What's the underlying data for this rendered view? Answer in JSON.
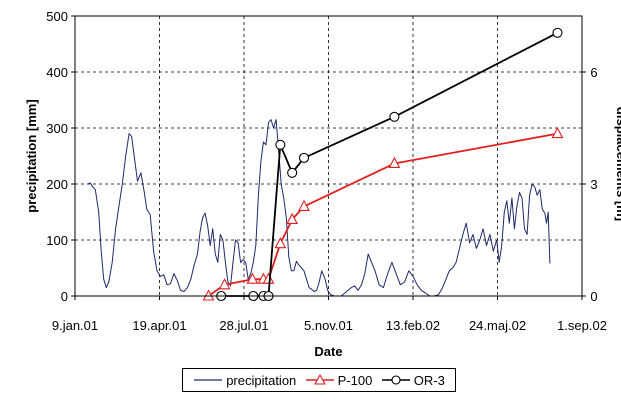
{
  "chart_data": {
    "type": "line",
    "xlabel": "Date",
    "ylabel": "precipitation [mm]",
    "y2label": "displacements [m]",
    "x_axis": "date",
    "xlim": [
      "2001-01-09",
      "2002-09-01"
    ],
    "ylim": [
      0,
      500
    ],
    "y2lim": [
      0,
      7.5
    ],
    "x_ticks": [
      "9.jan.01",
      "19.apr.01",
      "28.jul.01",
      "5.nov.01",
      "13.feb.02",
      "24.maj.02",
      "1.sep.02"
    ],
    "y_ticks": [
      "0",
      "100",
      "200",
      "300",
      "400",
      "500"
    ],
    "y2_ticks": [
      "0",
      "3",
      "6"
    ],
    "grid": "dashed",
    "legend_position": "bottom",
    "colors": {
      "precipitation": "#1f2a6b",
      "P-100": "#e02020",
      "OR-3": "#000000"
    },
    "series": [
      {
        "name": "precipitation",
        "axis": "left",
        "marker": "none",
        "points": [
          [
            "2001-01-24",
            200
          ],
          [
            "2001-01-27",
            202
          ],
          [
            "2001-01-30",
            195
          ],
          [
            "2001-02-02",
            190
          ],
          [
            "2001-02-06",
            150
          ],
          [
            "2001-02-09",
            80
          ],
          [
            "2001-02-12",
            30
          ],
          [
            "2001-02-15",
            15
          ],
          [
            "2001-02-18",
            25
          ],
          [
            "2001-02-22",
            60
          ],
          [
            "2001-02-26",
            120
          ],
          [
            "2001-03-02",
            160
          ],
          [
            "2001-03-06",
            200
          ],
          [
            "2001-03-10",
            250
          ],
          [
            "2001-03-14",
            290
          ],
          [
            "2001-03-17",
            285
          ],
          [
            "2001-03-20",
            250
          ],
          [
            "2001-03-24",
            205
          ],
          [
            "2001-03-28",
            220
          ],
          [
            "2001-04-01",
            185
          ],
          [
            "2001-04-04",
            155
          ],
          [
            "2001-04-08",
            145
          ],
          [
            "2001-04-12",
            80
          ],
          [
            "2001-04-16",
            45
          ],
          [
            "2001-04-20",
            35
          ],
          [
            "2001-04-24",
            38
          ],
          [
            "2001-04-28",
            20
          ],
          [
            "2001-05-02",
            22
          ],
          [
            "2001-05-06",
            40
          ],
          [
            "2001-05-10",
            28
          ],
          [
            "2001-05-14",
            10
          ],
          [
            "2001-05-18",
            8
          ],
          [
            "2001-05-22",
            15
          ],
          [
            "2001-05-26",
            30
          ],
          [
            "2001-05-30",
            55
          ],
          [
            "2001-06-03",
            75
          ],
          [
            "2001-06-06",
            115
          ],
          [
            "2001-06-09",
            140
          ],
          [
            "2001-06-12",
            148
          ],
          [
            "2001-06-15",
            125
          ],
          [
            "2001-06-18",
            90
          ],
          [
            "2001-06-21",
            120
          ],
          [
            "2001-06-24",
            75
          ],
          [
            "2001-06-27",
            60
          ],
          [
            "2001-06-30",
            110
          ],
          [
            "2001-07-03",
            100
          ],
          [
            "2001-07-06",
            60
          ],
          [
            "2001-07-09",
            25
          ],
          [
            "2001-07-12",
            18
          ],
          [
            "2001-07-15",
            60
          ],
          [
            "2001-07-18",
            100
          ],
          [
            "2001-07-21",
            95
          ],
          [
            "2001-07-24",
            60
          ],
          [
            "2001-07-27",
            65
          ],
          [
            "2001-07-30",
            60
          ],
          [
            "2001-08-02",
            30
          ],
          [
            "2001-08-05",
            40
          ],
          [
            "2001-08-08",
            60
          ],
          [
            "2001-08-11",
            90
          ],
          [
            "2001-08-14",
            180
          ],
          [
            "2001-08-17",
            240
          ],
          [
            "2001-08-20",
            275
          ],
          [
            "2001-08-23",
            270
          ],
          [
            "2001-08-26",
            310
          ],
          [
            "2001-08-29",
            315
          ],
          [
            "2001-09-01",
            300
          ],
          [
            "2001-09-04",
            315
          ],
          [
            "2001-09-07",
            260
          ],
          [
            "2001-09-10",
            200
          ],
          [
            "2001-09-13",
            175
          ],
          [
            "2001-09-16",
            140
          ],
          [
            "2001-09-19",
            70
          ],
          [
            "2001-09-22",
            45
          ],
          [
            "2001-09-25",
            45
          ],
          [
            "2001-09-28",
            62
          ],
          [
            "2001-10-01",
            55
          ],
          [
            "2001-10-04",
            50
          ],
          [
            "2001-10-07",
            45
          ],
          [
            "2001-10-10",
            30
          ],
          [
            "2001-10-13",
            15
          ],
          [
            "2001-10-16",
            12
          ],
          [
            "2001-10-19",
            8
          ],
          [
            "2001-10-22",
            10
          ],
          [
            "2001-10-25",
            25
          ],
          [
            "2001-10-28",
            45
          ],
          [
            "2001-11-01",
            30
          ],
          [
            "2001-11-04",
            10
          ],
          [
            "2001-11-08",
            2
          ],
          [
            "2001-11-12",
            0
          ],
          [
            "2001-11-16",
            0
          ],
          [
            "2001-11-20",
            0
          ],
          [
            "2001-11-24",
            5
          ],
          [
            "2001-11-28",
            10
          ],
          [
            "2001-12-02",
            15
          ],
          [
            "2001-12-06",
            18
          ],
          [
            "2001-12-10",
            10
          ],
          [
            "2001-12-14",
            20
          ],
          [
            "2001-12-18",
            40
          ],
          [
            "2001-12-22",
            75
          ],
          [
            "2001-12-26",
            60
          ],
          [
            "2001-12-30",
            45
          ],
          [
            "2002-01-04",
            20
          ],
          [
            "2002-01-09",
            15
          ],
          [
            "2002-01-14",
            40
          ],
          [
            "2002-01-19",
            60
          ],
          [
            "2002-01-24",
            40
          ],
          [
            "2002-01-29",
            20
          ],
          [
            "2002-02-03",
            25
          ],
          [
            "2002-02-08",
            45
          ],
          [
            "2002-02-13",
            35
          ],
          [
            "2002-02-18",
            20
          ],
          [
            "2002-02-23",
            10
          ],
          [
            "2002-02-28",
            5
          ],
          [
            "2002-03-05",
            0
          ],
          [
            "2002-03-10",
            0
          ],
          [
            "2002-03-15",
            2
          ],
          [
            "2002-03-20",
            15
          ],
          [
            "2002-03-24",
            30
          ],
          [
            "2002-03-28",
            45
          ],
          [
            "2002-04-01",
            50
          ],
          [
            "2002-04-05",
            60
          ],
          [
            "2002-04-09",
            85
          ],
          [
            "2002-04-13",
            110
          ],
          [
            "2002-04-17",
            130
          ],
          [
            "2002-04-21",
            95
          ],
          [
            "2002-04-25",
            110
          ],
          [
            "2002-04-29",
            85
          ],
          [
            "2002-05-03",
            100
          ],
          [
            "2002-05-07",
            120
          ],
          [
            "2002-05-11",
            90
          ],
          [
            "2002-05-15",
            110
          ],
          [
            "2002-05-19",
            80
          ],
          [
            "2002-05-23",
            100
          ],
          [
            "2002-05-26",
            60
          ],
          [
            "2002-05-29",
            90
          ],
          [
            "2002-06-01",
            150
          ],
          [
            "2002-06-04",
            170
          ],
          [
            "2002-06-07",
            130
          ],
          [
            "2002-06-10",
            175
          ],
          [
            "2002-06-13",
            120
          ],
          [
            "2002-06-16",
            160
          ],
          [
            "2002-06-19",
            185
          ],
          [
            "2002-06-22",
            175
          ],
          [
            "2002-06-25",
            120
          ],
          [
            "2002-06-28",
            110
          ],
          [
            "2002-07-01",
            180
          ],
          [
            "2002-07-04",
            200
          ],
          [
            "2002-07-07",
            195
          ],
          [
            "2002-07-10",
            180
          ],
          [
            "2002-07-13",
            190
          ],
          [
            "2002-07-16",
            155
          ],
          [
            "2002-07-19",
            148
          ],
          [
            "2002-07-21",
            130
          ],
          [
            "2002-07-23",
            150
          ],
          [
            "2002-07-25",
            58
          ]
        ]
      },
      {
        "name": "P-100",
        "axis": "right",
        "marker": "triangle",
        "points": [
          [
            "2001-06-16",
            0
          ],
          [
            "2001-07-05",
            0.3
          ],
          [
            "2001-08-07",
            0.45
          ],
          [
            "2001-08-20",
            0.45
          ],
          [
            "2001-08-26",
            0.45
          ],
          [
            "2001-09-09",
            1.4
          ],
          [
            "2001-09-23",
            2.05
          ],
          [
            "2001-10-07",
            2.4
          ],
          [
            "2002-01-22",
            3.55
          ],
          [
            "2002-08-03",
            4.35
          ]
        ]
      },
      {
        "name": "OR-3",
        "axis": "right",
        "marker": "circle",
        "points": [
          [
            "2001-07-01",
            0
          ],
          [
            "2001-08-08",
            0
          ],
          [
            "2001-08-20",
            0
          ],
          [
            "2001-08-26",
            0
          ],
          [
            "2001-09-09",
            4.05
          ],
          [
            "2001-09-23",
            3.3
          ],
          [
            "2001-10-07",
            3.7
          ],
          [
            "2002-01-22",
            4.8
          ],
          [
            "2002-08-03",
            7.05
          ]
        ]
      }
    ]
  }
}
